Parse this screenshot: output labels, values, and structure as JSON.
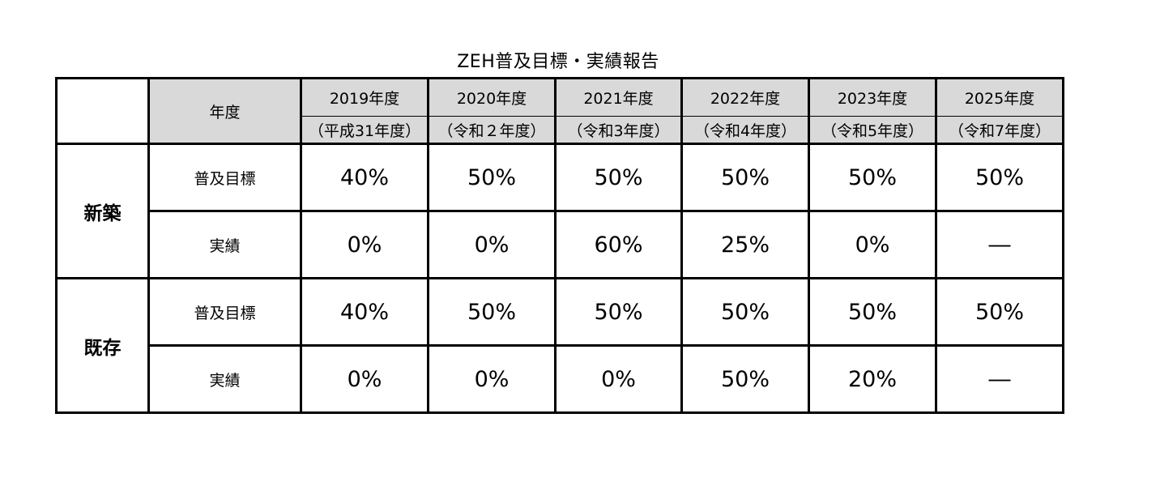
{
  "title": "ZEH普及目標・実績報告",
  "header": {
    "year_label": "年度",
    "years": [
      {
        "year": "2019年度",
        "era": "（平成31年度）"
      },
      {
        "year": "2020年度",
        "era": "（令和２年度）"
      },
      {
        "year": "2021年度",
        "era": "（令和3年度）"
      },
      {
        "year": "2022年度",
        "era": "（令和4年度）"
      },
      {
        "year": "2023年度",
        "era": "（令和5年度）"
      },
      {
        "year": "2025年度",
        "era": "（令和7年度）"
      }
    ]
  },
  "sections": [
    {
      "category": "新築",
      "rows": [
        {
          "label": "普及目標",
          "values": [
            "40%",
            "50%",
            "50%",
            "50%",
            "50%",
            "50%"
          ]
        },
        {
          "label": "実績",
          "values": [
            "0%",
            "0%",
            "60%",
            "25%",
            "0%",
            "―"
          ]
        }
      ]
    },
    {
      "category": "既存",
      "rows": [
        {
          "label": "普及目標",
          "values": [
            "40%",
            "50%",
            "50%",
            "50%",
            "50%",
            "50%"
          ]
        },
        {
          "label": "実績",
          "values": [
            "0%",
            "0%",
            "0%",
            "50%",
            "20%",
            "―"
          ]
        }
      ]
    }
  ]
}
